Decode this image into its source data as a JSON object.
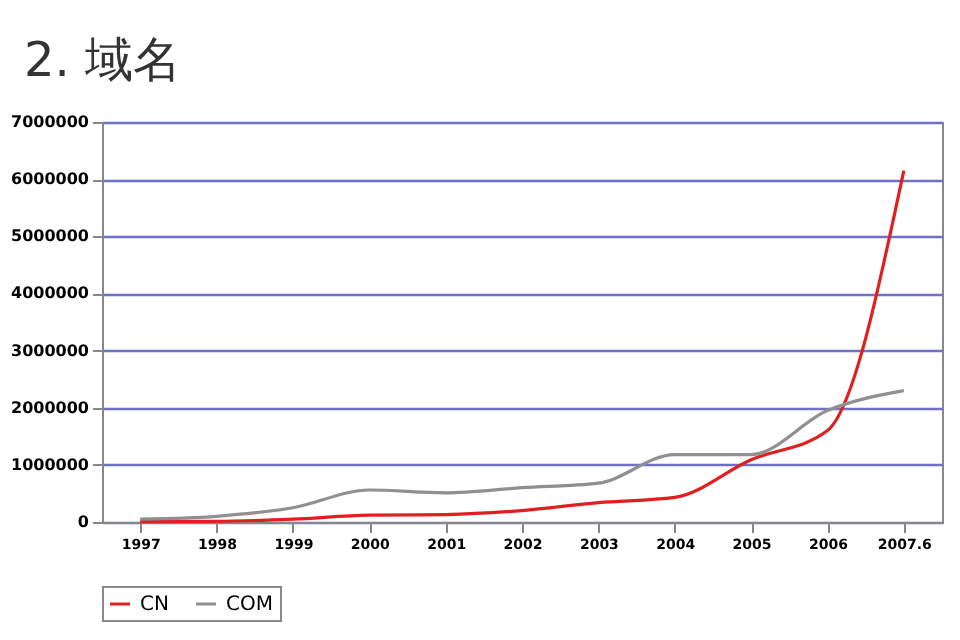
{
  "chart_data": {
    "type": "line",
    "title": "2. 域名",
    "categories": [
      "1997",
      "1998",
      "1999",
      "2000",
      "2001",
      "2002",
      "2003",
      "2004",
      "2005",
      "2006",
      "2007.6"
    ],
    "series": [
      {
        "name": "CN",
        "color": "#e02020",
        "values": [
          5000,
          10000,
          50000,
          120000,
          130000,
          200000,
          340000,
          430000,
          1090000,
          1600000,
          6150000
        ]
      },
      {
        "name": "COM",
        "color": "#909090",
        "values": [
          50000,
          100000,
          250000,
          560000,
          510000,
          600000,
          680000,
          1180000,
          1180000,
          1950000,
          2300000
        ]
      }
    ],
    "ylim": [
      0,
      7000000
    ],
    "yticks": [
      0,
      1000000,
      2000000,
      3000000,
      4000000,
      5000000,
      6000000,
      7000000
    ],
    "grid": "y",
    "legend": "bottom"
  }
}
